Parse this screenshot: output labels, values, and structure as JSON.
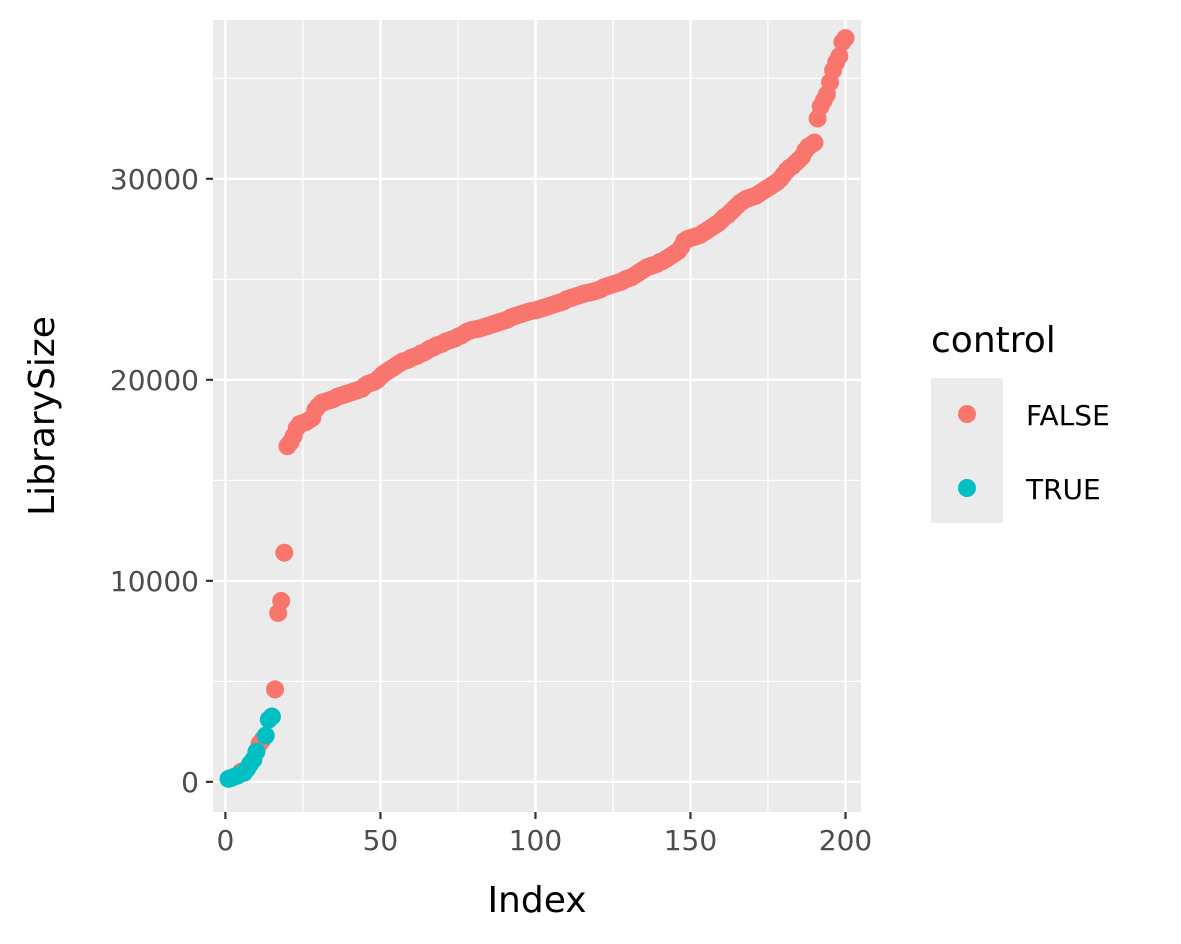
{
  "chart_data": {
    "type": "scatter",
    "xlabel": "Index",
    "ylabel": "LibrarySize",
    "xlim": [
      -4,
      205
    ],
    "ylim": [
      -1500,
      37900
    ],
    "x_ticks": [
      0,
      50,
      100,
      150,
      200
    ],
    "y_ticks": [
      0,
      10000,
      20000,
      30000
    ],
    "x_tick_labels": [
      "0",
      "50",
      "100",
      "150",
      "200"
    ],
    "y_tick_labels": [
      "0",
      "10000",
      "20000",
      "30000"
    ],
    "grid": true,
    "legend": {
      "title": "control",
      "position": "right",
      "entries": [
        {
          "label": "FALSE",
          "color": "#F8766D"
        },
        {
          "label": "TRUE",
          "color": "#00BFC4"
        }
      ]
    },
    "series": [
      {
        "name": "FALSE",
        "color": "#F8766D",
        "points": [
          [
            5,
            500
          ],
          [
            11,
            1900
          ],
          [
            12,
            2100
          ],
          [
            16,
            4600
          ],
          [
            17,
            8400
          ],
          [
            18,
            9000
          ],
          [
            19,
            11400
          ],
          [
            20,
            16700
          ],
          [
            21,
            16900
          ],
          [
            22,
            17200
          ],
          [
            23,
            17600
          ],
          [
            24,
            17800
          ],
          [
            25,
            17850
          ],
          [
            26,
            17900
          ],
          [
            27,
            18000
          ],
          [
            28,
            18100
          ],
          [
            29,
            18500
          ],
          [
            30,
            18700
          ],
          [
            31,
            18850
          ],
          [
            32,
            18900
          ],
          [
            33,
            18950
          ],
          [
            34,
            19000
          ],
          [
            35,
            19050
          ],
          [
            36,
            19150
          ],
          [
            37,
            19200
          ],
          [
            38,
            19250
          ],
          [
            39,
            19300
          ],
          [
            40,
            19350
          ],
          [
            41,
            19400
          ],
          [
            42,
            19450
          ],
          [
            43,
            19500
          ],
          [
            44,
            19550
          ],
          [
            45,
            19700
          ],
          [
            46,
            19800
          ],
          [
            47,
            19850
          ],
          [
            48,
            19900
          ],
          [
            49,
            20000
          ],
          [
            50,
            20150
          ],
          [
            51,
            20300
          ],
          [
            52,
            20400
          ],
          [
            53,
            20500
          ],
          [
            54,
            20600
          ],
          [
            55,
            20700
          ],
          [
            56,
            20800
          ],
          [
            57,
            20900
          ],
          [
            58,
            20950
          ],
          [
            59,
            21000
          ],
          [
            60,
            21100
          ],
          [
            61,
            21150
          ],
          [
            62,
            21200
          ],
          [
            63,
            21300
          ],
          [
            64,
            21350
          ],
          [
            65,
            21450
          ],
          [
            66,
            21550
          ],
          [
            67,
            21600
          ],
          [
            68,
            21700
          ],
          [
            69,
            21750
          ],
          [
            70,
            21800
          ],
          [
            71,
            21900
          ],
          [
            72,
            21950
          ],
          [
            73,
            22000
          ],
          [
            74,
            22050
          ],
          [
            75,
            22150
          ],
          [
            76,
            22200
          ],
          [
            77,
            22300
          ],
          [
            78,
            22400
          ],
          [
            79,
            22450
          ],
          [
            80,
            22500
          ],
          [
            81,
            22520
          ],
          [
            82,
            22550
          ],
          [
            83,
            22600
          ],
          [
            84,
            22650
          ],
          [
            85,
            22700
          ],
          [
            86,
            22750
          ],
          [
            87,
            22800
          ],
          [
            88,
            22850
          ],
          [
            89,
            22900
          ],
          [
            90,
            22950
          ],
          [
            91,
            23000
          ],
          [
            92,
            23100
          ],
          [
            93,
            23150
          ],
          [
            94,
            23200
          ],
          [
            95,
            23250
          ],
          [
            96,
            23300
          ],
          [
            97,
            23350
          ],
          [
            98,
            23400
          ],
          [
            99,
            23430
          ],
          [
            100,
            23460
          ],
          [
            101,
            23500
          ],
          [
            102,
            23550
          ],
          [
            103,
            23600
          ],
          [
            104,
            23650
          ],
          [
            105,
            23700
          ],
          [
            106,
            23750
          ],
          [
            107,
            23800
          ],
          [
            108,
            23850
          ],
          [
            109,
            23900
          ],
          [
            110,
            24000
          ],
          [
            111,
            24050
          ],
          [
            112,
            24100
          ],
          [
            113,
            24150
          ],
          [
            114,
            24200
          ],
          [
            115,
            24250
          ],
          [
            116,
            24300
          ],
          [
            117,
            24330
          ],
          [
            118,
            24360
          ],
          [
            119,
            24400
          ],
          [
            120,
            24450
          ],
          [
            121,
            24500
          ],
          [
            122,
            24600
          ],
          [
            123,
            24650
          ],
          [
            124,
            24700
          ],
          [
            125,
            24750
          ],
          [
            126,
            24800
          ],
          [
            127,
            24850
          ],
          [
            128,
            24900
          ],
          [
            129,
            25000
          ],
          [
            130,
            25050
          ],
          [
            131,
            25100
          ],
          [
            132,
            25200
          ],
          [
            133,
            25300
          ],
          [
            134,
            25400
          ],
          [
            135,
            25500
          ],
          [
            136,
            25600
          ],
          [
            137,
            25650
          ],
          [
            138,
            25700
          ],
          [
            139,
            25750
          ],
          [
            140,
            25850
          ],
          [
            141,
            25900
          ],
          [
            142,
            26000
          ],
          [
            143,
            26100
          ],
          [
            144,
            26200
          ],
          [
            145,
            26300
          ],
          [
            146,
            26400
          ],
          [
            147,
            26600
          ],
          [
            148,
            26900
          ],
          [
            149,
            27000
          ],
          [
            150,
            27050
          ],
          [
            151,
            27100
          ],
          [
            152,
            27150
          ],
          [
            153,
            27200
          ],
          [
            154,
            27300
          ],
          [
            155,
            27400
          ],
          [
            156,
            27500
          ],
          [
            157,
            27600
          ],
          [
            158,
            27700
          ],
          [
            159,
            27800
          ],
          [
            160,
            27950
          ],
          [
            161,
            28100
          ],
          [
            162,
            28200
          ],
          [
            163,
            28350
          ],
          [
            164,
            28500
          ],
          [
            165,
            28650
          ],
          [
            166,
            28800
          ],
          [
            167,
            28900
          ],
          [
            168,
            29000
          ],
          [
            169,
            29050
          ],
          [
            170,
            29100
          ],
          [
            171,
            29150
          ],
          [
            172,
            29250
          ],
          [
            173,
            29350
          ],
          [
            174,
            29450
          ],
          [
            175,
            29550
          ],
          [
            176,
            29650
          ],
          [
            177,
            29750
          ],
          [
            178,
            29850
          ],
          [
            179,
            30000
          ],
          [
            180,
            30200
          ],
          [
            181,
            30400
          ],
          [
            182,
            30550
          ],
          [
            183,
            30650
          ],
          [
            184,
            30800
          ],
          [
            185,
            30950
          ],
          [
            186,
            31100
          ],
          [
            187,
            31400
          ],
          [
            188,
            31600
          ],
          [
            189,
            31700
          ],
          [
            190,
            31800
          ],
          [
            191,
            33000
          ],
          [
            192,
            33600
          ],
          [
            193,
            33900
          ],
          [
            194,
            34200
          ],
          [
            195,
            34800
          ],
          [
            196,
            35400
          ],
          [
            197,
            35800
          ],
          [
            198,
            36100
          ],
          [
            199,
            36800
          ],
          [
            200,
            37000
          ]
        ]
      },
      {
        "name": "TRUE",
        "color": "#00BFC4",
        "points": [
          [
            1,
            150
          ],
          [
            2,
            200
          ],
          [
            3,
            260
          ],
          [
            4,
            320
          ],
          [
            6,
            450
          ],
          [
            7,
            650
          ],
          [
            8,
            900
          ],
          [
            9,
            1100
          ],
          [
            10,
            1500
          ],
          [
            13,
            2300
          ],
          [
            14,
            3100
          ],
          [
            15,
            3250
          ]
        ]
      }
    ]
  }
}
